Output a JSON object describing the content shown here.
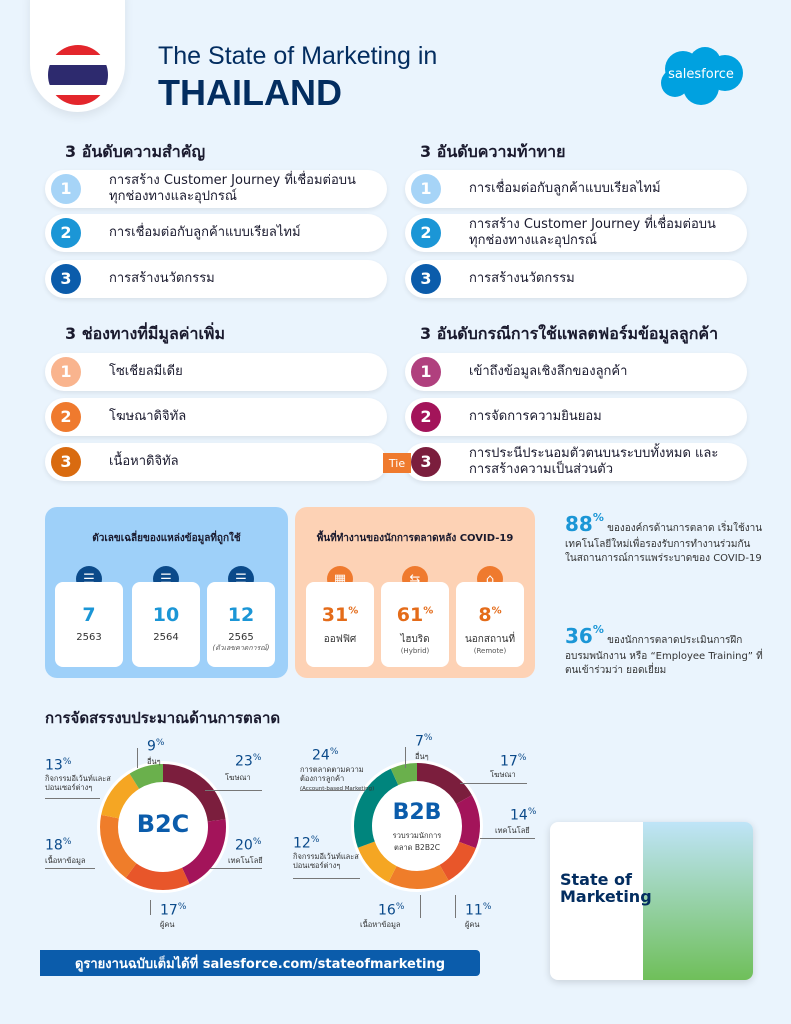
{
  "header": {
    "title_line1": "The State of Marketing in",
    "title_line2": "THAILAND",
    "logo": "salesforce"
  },
  "priorities": {
    "heading": "3 อันดับความสำคัญ",
    "items": [
      {
        "n": "1",
        "label": "การสร้าง Customer Journey ที่เชื่อมต่อบนทุกช่องทางและอุปกรณ์"
      },
      {
        "n": "2",
        "label": "การเชื่อมต่อกับลูกค้าแบบเรียลไทม์"
      },
      {
        "n": "3",
        "label": "การสร้างนวัตกรรม"
      }
    ]
  },
  "challenges": {
    "heading": "3 อันดับความท้าทาย",
    "items": [
      {
        "n": "1",
        "label": "การเชื่อมต่อกับลูกค้าแบบเรียลไทม์"
      },
      {
        "n": "2",
        "label": "การสร้าง Customer Journey ที่เชื่อมต่อบนทุกช่องทางและอุปกรณ์"
      },
      {
        "n": "3",
        "label": "การสร้างนวัตกรรม"
      }
    ]
  },
  "channels": {
    "heading": "3 ช่องทางที่มีมูลค่าเพิ่ม",
    "items": [
      {
        "n": "1",
        "label": "โซเชียลมีเดีย"
      },
      {
        "n": "2",
        "label": "โฆษณาดิจิทัล"
      },
      {
        "n": "3",
        "label": "เนื้อหาดิจิทัล"
      }
    ]
  },
  "use_cases": {
    "heading": "3 อันดับกรณีการใช้แพลตฟอร์มข้อมูลลูกค้า",
    "tie": "Tie",
    "items": [
      {
        "n": "1",
        "label": "เข้าถึงข้อมูลเชิงลึกของลูกค้า"
      },
      {
        "n": "2",
        "label": "การจัดการความยินยอม"
      },
      {
        "n": "3",
        "label": "การประนีประนอมตัวตนบนระบบทั้งหมด และ การสร้างความเป็นส่วนตัว"
      }
    ]
  },
  "data_sources": {
    "title": "ตัวเลขเฉลี่ยของแหล่งข้อมูลที่ถูกใช้",
    "icon": "database-icon",
    "cards": [
      {
        "value": "7",
        "year": "2563",
        "note": ""
      },
      {
        "value": "10",
        "year": "2564",
        "note": ""
      },
      {
        "value": "12",
        "year": "2565",
        "note": "(ตัวเลขคาดการณ์)"
      }
    ]
  },
  "workplace": {
    "title": "พื้นที่ทำงานของนักการตลาดหลัง COVID-19",
    "cards": [
      {
        "icon": "office-building-icon",
        "value": "31",
        "unit": "%",
        "label": "ออฟฟิศ",
        "sub": ""
      },
      {
        "icon": "signpost-icon",
        "value": "61",
        "unit": "%",
        "label": "ไฮบริด",
        "sub": "(Hybrid)"
      },
      {
        "icon": "home-icon",
        "value": "8",
        "unit": "%",
        "label": "นอกสถานที่",
        "sub": "(Remote)"
      }
    ]
  },
  "stats": [
    {
      "value": "88",
      "unit": "%",
      "text": "ขององค์กรด้านการตลาด เริ่มใช้งานเทคโนโลยีใหม่เพื่อรองรับการทำงานร่วมกัน ในสถานการณ์การแพร่ระบาดของ COVID-19"
    },
    {
      "value": "36",
      "unit": "%",
      "text": "ของนักการตลาดประเมินการฝึกอบรมพนักงาน หรือ “Employee Training” ที่ตนเข้าร่วมว่า ยอดเยี่ยม"
    }
  ],
  "budget_heading": "การจัดสรรงบประมาณด้านการตลาด",
  "chart_data": [
    {
      "type": "pie",
      "title": "B2C",
      "subtitle": "",
      "series": [
        {
          "label": "โฆษณา",
          "value": 23,
          "color": "#7b1e3d"
        },
        {
          "label": "เทคโนโลยี",
          "value": 20,
          "color": "#a3145a"
        },
        {
          "label": "ผู้คน",
          "value": 17,
          "color": "#e8562a"
        },
        {
          "label": "เนื้อหาข้อมูล",
          "value": 18,
          "color": "#ef7d2a"
        },
        {
          "label": "กิจกรรมอีเว้นท์และสปอนเซอร์ต่างๆ",
          "value": 13,
          "color": "#f5a623"
        },
        {
          "label": "อื่นๆ",
          "value": 9,
          "color": "#6ab04c"
        }
      ]
    },
    {
      "type": "pie",
      "title": "B2B",
      "subtitle": "รวบรวมนักการตลาด B2B2C",
      "series": [
        {
          "label": "โฆษณา",
          "value": 17,
          "color": "#7b1e3d"
        },
        {
          "label": "เทคโนโลยี",
          "value": 14,
          "color": "#a3145a"
        },
        {
          "label": "ผู้คน",
          "value": 11,
          "color": "#e8562a"
        },
        {
          "label": "เนื้อหาข้อมูล",
          "value": 16,
          "color": "#ef7d2a"
        },
        {
          "label": "กิจกรรมอีเว้นท์และสปอนเซอร์ต่างๆ",
          "value": 12,
          "color": "#f5a623"
        },
        {
          "label": "การตลาดตามความต้องการลูกค้า",
          "note": "(Account-based Marketing)",
          "value": 24,
          "color": "#00857d"
        },
        {
          "label": "อื่นๆ",
          "value": 7,
          "color": "#6ab04c"
        }
      ]
    }
  ],
  "footer": {
    "link_text": "ดูรายงานฉบับเต็มได้ที่ salesforce.com/stateofmarketing"
  },
  "book": {
    "title": "State of Marketing"
  }
}
